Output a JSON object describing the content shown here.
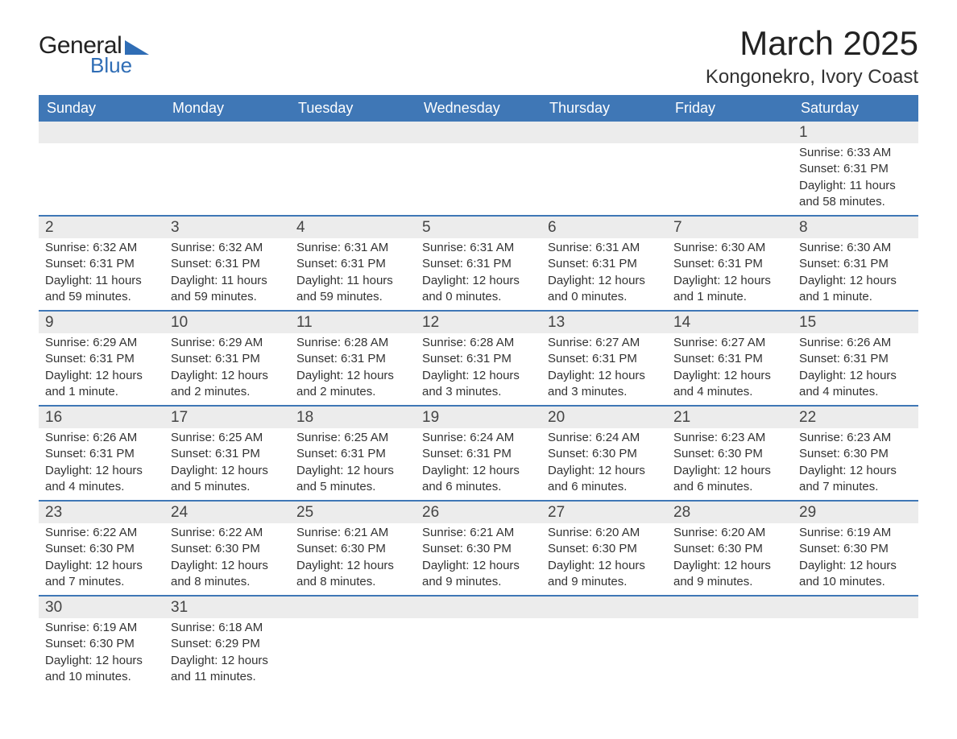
{
  "logo": {
    "word1": "General",
    "word2": "Blue"
  },
  "title": "March 2025",
  "location": "Kongonekro, Ivory Coast",
  "weekday_headers": [
    "Sunday",
    "Monday",
    "Tuesday",
    "Wednesday",
    "Thursday",
    "Friday",
    "Saturday"
  ],
  "colors": {
    "header_bg": "#3f77b6",
    "header_text": "#ffffff",
    "daynum_bg": "#ececec",
    "row_divider": "#3f77b6",
    "logo_accent": "#2f6db5"
  },
  "weeks": [
    [
      null,
      null,
      null,
      null,
      null,
      null,
      {
        "n": "1",
        "sunrise": "6:33 AM",
        "sunset": "6:31 PM",
        "daylight": "11 hours and 58 minutes."
      }
    ],
    [
      {
        "n": "2",
        "sunrise": "6:32 AM",
        "sunset": "6:31 PM",
        "daylight": "11 hours and 59 minutes."
      },
      {
        "n": "3",
        "sunrise": "6:32 AM",
        "sunset": "6:31 PM",
        "daylight": "11 hours and 59 minutes."
      },
      {
        "n": "4",
        "sunrise": "6:31 AM",
        "sunset": "6:31 PM",
        "daylight": "11 hours and 59 minutes."
      },
      {
        "n": "5",
        "sunrise": "6:31 AM",
        "sunset": "6:31 PM",
        "daylight": "12 hours and 0 minutes."
      },
      {
        "n": "6",
        "sunrise": "6:31 AM",
        "sunset": "6:31 PM",
        "daylight": "12 hours and 0 minutes."
      },
      {
        "n": "7",
        "sunrise": "6:30 AM",
        "sunset": "6:31 PM",
        "daylight": "12 hours and 1 minute."
      },
      {
        "n": "8",
        "sunrise": "6:30 AM",
        "sunset": "6:31 PM",
        "daylight": "12 hours and 1 minute."
      }
    ],
    [
      {
        "n": "9",
        "sunrise": "6:29 AM",
        "sunset": "6:31 PM",
        "daylight": "12 hours and 1 minute."
      },
      {
        "n": "10",
        "sunrise": "6:29 AM",
        "sunset": "6:31 PM",
        "daylight": "12 hours and 2 minutes."
      },
      {
        "n": "11",
        "sunrise": "6:28 AM",
        "sunset": "6:31 PM",
        "daylight": "12 hours and 2 minutes."
      },
      {
        "n": "12",
        "sunrise": "6:28 AM",
        "sunset": "6:31 PM",
        "daylight": "12 hours and 3 minutes."
      },
      {
        "n": "13",
        "sunrise": "6:27 AM",
        "sunset": "6:31 PM",
        "daylight": "12 hours and 3 minutes."
      },
      {
        "n": "14",
        "sunrise": "6:27 AM",
        "sunset": "6:31 PM",
        "daylight": "12 hours and 4 minutes."
      },
      {
        "n": "15",
        "sunrise": "6:26 AM",
        "sunset": "6:31 PM",
        "daylight": "12 hours and 4 minutes."
      }
    ],
    [
      {
        "n": "16",
        "sunrise": "6:26 AM",
        "sunset": "6:31 PM",
        "daylight": "12 hours and 4 minutes."
      },
      {
        "n": "17",
        "sunrise": "6:25 AM",
        "sunset": "6:31 PM",
        "daylight": "12 hours and 5 minutes."
      },
      {
        "n": "18",
        "sunrise": "6:25 AM",
        "sunset": "6:31 PM",
        "daylight": "12 hours and 5 minutes."
      },
      {
        "n": "19",
        "sunrise": "6:24 AM",
        "sunset": "6:31 PM",
        "daylight": "12 hours and 6 minutes."
      },
      {
        "n": "20",
        "sunrise": "6:24 AM",
        "sunset": "6:30 PM",
        "daylight": "12 hours and 6 minutes."
      },
      {
        "n": "21",
        "sunrise": "6:23 AM",
        "sunset": "6:30 PM",
        "daylight": "12 hours and 6 minutes."
      },
      {
        "n": "22",
        "sunrise": "6:23 AM",
        "sunset": "6:30 PM",
        "daylight": "12 hours and 7 minutes."
      }
    ],
    [
      {
        "n": "23",
        "sunrise": "6:22 AM",
        "sunset": "6:30 PM",
        "daylight": "12 hours and 7 minutes."
      },
      {
        "n": "24",
        "sunrise": "6:22 AM",
        "sunset": "6:30 PM",
        "daylight": "12 hours and 8 minutes."
      },
      {
        "n": "25",
        "sunrise": "6:21 AM",
        "sunset": "6:30 PM",
        "daylight": "12 hours and 8 minutes."
      },
      {
        "n": "26",
        "sunrise": "6:21 AM",
        "sunset": "6:30 PM",
        "daylight": "12 hours and 9 minutes."
      },
      {
        "n": "27",
        "sunrise": "6:20 AM",
        "sunset": "6:30 PM",
        "daylight": "12 hours and 9 minutes."
      },
      {
        "n": "28",
        "sunrise": "6:20 AM",
        "sunset": "6:30 PM",
        "daylight": "12 hours and 9 minutes."
      },
      {
        "n": "29",
        "sunrise": "6:19 AM",
        "sunset": "6:30 PM",
        "daylight": "12 hours and 10 minutes."
      }
    ],
    [
      {
        "n": "30",
        "sunrise": "6:19 AM",
        "sunset": "6:30 PM",
        "daylight": "12 hours and 10 minutes."
      },
      {
        "n": "31",
        "sunrise": "6:18 AM",
        "sunset": "6:29 PM",
        "daylight": "12 hours and 11 minutes."
      },
      null,
      null,
      null,
      null,
      null
    ]
  ],
  "labels": {
    "sunrise_prefix": "Sunrise: ",
    "sunset_prefix": "Sunset: ",
    "daylight_prefix": "Daylight: "
  }
}
